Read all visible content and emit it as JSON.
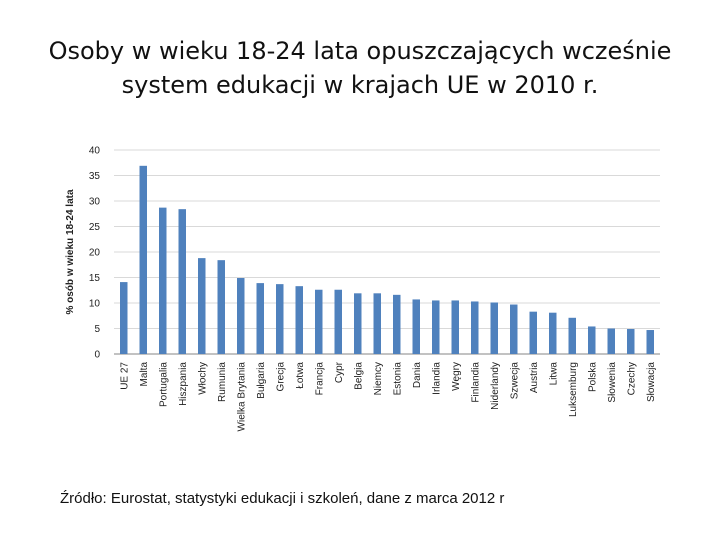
{
  "title": {
    "line1": "Osoby w wieku 18-24 lata opuszczających wcześnie",
    "line2": "system edukacji w krajach UE w 2010 r."
  },
  "source": "Źródło: Eurostat, statystyki edukacji i szkoleń, dane z marca 2012 r",
  "colors": {
    "bar": "#4f81bd",
    "grid": "#d9d9d9",
    "axis": "#868686"
  },
  "chart_data": {
    "type": "bar",
    "title": "Osoby w wieku 18-24 lata opuszczających wcześnie system edukacji w krajach UE w 2010 r.",
    "xlabel": "",
    "ylabel": "% osób w wieku 18-24 lata",
    "ylim": [
      0,
      40
    ],
    "yticks": [
      0,
      5,
      10,
      15,
      20,
      25,
      30,
      35,
      40
    ],
    "grid": true,
    "categories": [
      "UE 27",
      "Malta",
      "Portugalia",
      "Hiszpania",
      "Włochy",
      "Rumunia",
      "Wielka Brytania",
      "Bułgaria",
      "Grecja",
      "Łotwa",
      "Francja",
      "Cypr",
      "Belgia",
      "Niemcy",
      "Estonia",
      "Dania",
      "Irlandia",
      "Węgry",
      "Finlandia",
      "Niderlandy",
      "Szwecja",
      "Austria",
      "Litwa",
      "Luksemburg",
      "Polska",
      "Słowenia",
      "Czechy",
      "Słowacja"
    ],
    "values": [
      14.1,
      36.9,
      28.7,
      28.4,
      18.8,
      18.4,
      14.9,
      13.9,
      13.7,
      13.3,
      12.6,
      12.6,
      11.9,
      11.9,
      11.6,
      10.7,
      10.5,
      10.5,
      10.3,
      10.1,
      9.7,
      8.3,
      8.1,
      7.1,
      5.4,
      5.0,
      4.9,
      4.7
    ]
  }
}
